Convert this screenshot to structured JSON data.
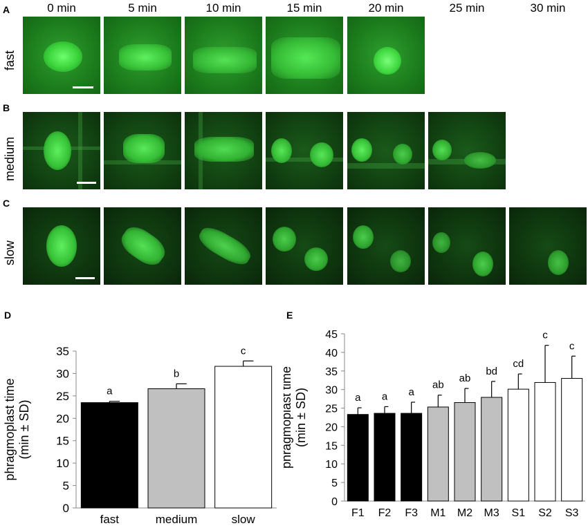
{
  "figure": {
    "panel_letters": {
      "A": "A",
      "B": "B",
      "C": "C",
      "D": "D",
      "E": "E"
    },
    "time_labels": [
      "0 min",
      "5 min",
      "10 min",
      "15 min",
      "20 min",
      "25 min",
      "30 min"
    ],
    "row_labels": {
      "fast": "fast",
      "medium": "medium",
      "slow": "slow"
    },
    "green_color": "#2fa02f"
  },
  "chart_data": [
    {
      "type": "bar",
      "panel": "D",
      "categories": [
        "fast",
        "medium",
        "slow"
      ],
      "values": [
        23.5,
        26.6,
        31.6
      ],
      "errors": [
        0.3,
        1.1,
        1.2
      ],
      "significance": [
        "a",
        "b",
        "c"
      ],
      "fills": [
        "#000000",
        "#c0c0c0",
        "#ffffff"
      ],
      "ylabel": "phragmoplast  time (min ± SD)",
      "ylim": [
        0,
        35
      ],
      "yticks": [
        0,
        5,
        10,
        15,
        20,
        25,
        30,
        35
      ]
    },
    {
      "type": "bar",
      "panel": "E",
      "categories": [
        "F1",
        "F2",
        "F3",
        "M1",
        "M2",
        "M3",
        "S1",
        "S2",
        "S3"
      ],
      "values": [
        23.3,
        23.6,
        23.6,
        25.3,
        26.5,
        27.9,
        30.1,
        31.9,
        33.0
      ],
      "errors": [
        1.8,
        1.8,
        3.0,
        3.2,
        3.8,
        4.3,
        4.1,
        10.0,
        6.0
      ],
      "significance": [
        "a",
        "a",
        "a",
        "ab",
        "ab",
        "bd",
        "cd",
        "c",
        "c"
      ],
      "fills": [
        "#000000",
        "#000000",
        "#000000",
        "#c0c0c0",
        "#c0c0c0",
        "#c0c0c0",
        "#ffffff",
        "#ffffff",
        "#ffffff"
      ],
      "ylabel": "phragmoplast  time (min ± SD)",
      "ylim": [
        0,
        45
      ],
      "yticks": [
        0,
        5,
        10,
        15,
        20,
        25,
        30,
        35,
        40,
        45
      ]
    }
  ]
}
